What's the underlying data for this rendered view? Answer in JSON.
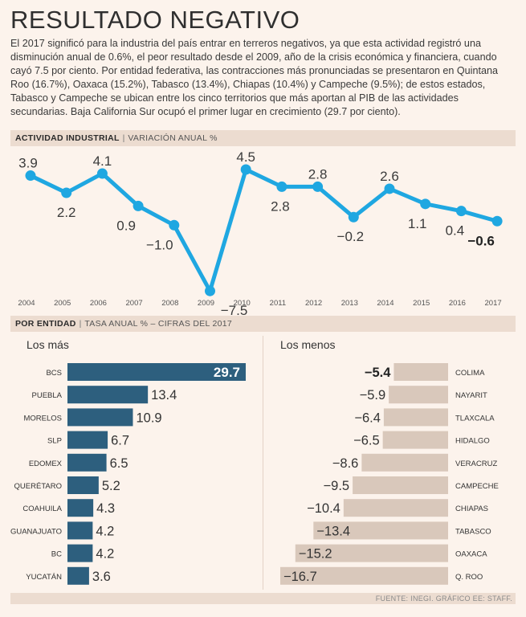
{
  "title": "RESULTADO NEGATIVO",
  "intro": "El 2017 significó para la industria del país entrar en terreros negativos, ya que esta actividad registró una disminución anual de 0.6%, el peor resultado desde el 2009, año de la crisis económica y financiera, cuando cayó 7.5 por ciento. Por entidad federativa, las contracciones más pronunciadas se presentaron en Quintana Roo (16.7%), Oaxaca (15.2%), Tabasco (13.4%), Chiapas (10.4%) y Campeche (9.5%); de estos estados, Tabasco y Campeche se ubican entre los cinco territorios que más aportan al PIB de las actividades secundarias. Baja California Sur ocupó el primer lugar en crecimiento (29.7 por ciento).",
  "section1": {
    "title": "ACTIVIDAD INDUSTRIAL",
    "subtitle": "VARIACIÓN ANUAL %"
  },
  "section2": {
    "title": "POR ENTIDAD",
    "subtitle": "TASA ANUAL % – CIFRAS DEL 2017"
  },
  "footer": "FUENTE: INEGI. GRÁFICO EE: STAFF.",
  "colors": {
    "accent": "#1fa7e1",
    "bar_top": "#2d5f7e",
    "bar_bottom": "#d9c8bb",
    "band": "#ecdcd0",
    "background": "#fcf3ec"
  },
  "chart_data": [
    {
      "type": "line",
      "title": "ACTIVIDAD INDUSTRIAL",
      "subtitle": "VARIACIÓN ANUAL %",
      "x": [
        "2004",
        "2005",
        "2006",
        "2007",
        "2008",
        "2009",
        "2010",
        "2011",
        "2012",
        "2013",
        "2014",
        "2015",
        "2016",
        "2017"
      ],
      "values": [
        3.9,
        2.2,
        4.1,
        0.9,
        -1.0,
        -7.5,
        4.5,
        2.8,
        2.8,
        -0.2,
        2.6,
        1.1,
        0.4,
        -0.6
      ],
      "labels": [
        "3.9",
        "2.2",
        "4.1",
        "0.9",
        "−1.0",
        "−7.5",
        "4.5",
        "2.8",
        "2.8",
        "−0.2",
        "2.6",
        "1.1",
        "0.4",
        "−0.6"
      ],
      "highlight_last": true,
      "ylim": [
        -8,
        5
      ]
    },
    {
      "type": "bar",
      "title": "Los más",
      "categories": [
        "BCS",
        "PUEBLA",
        "MORELOS",
        "SLP",
        "EDOMEX",
        "QUERÉTARO",
        "COAHUILA",
        "GUANAJUATO",
        "BC",
        "YUCATÁN"
      ],
      "values": [
        29.7,
        13.4,
        10.9,
        6.7,
        6.5,
        5.2,
        4.3,
        4.2,
        4.2,
        3.6
      ],
      "labels": [
        "29.7",
        "13.4",
        "10.9",
        "6.7",
        "6.5",
        "5.2",
        "4.3",
        "4.2",
        "4.2",
        "3.6"
      ]
    },
    {
      "type": "bar",
      "title": "Los menos",
      "categories": [
        "COLIMA",
        "NAYARIT",
        "TLAXCALA",
        "HIDALGO",
        "VERACRUZ",
        "CAMPECHE",
        "CHIAPAS",
        "TABASCO",
        "OAXACA",
        "Q. ROO"
      ],
      "values": [
        -5.4,
        -5.9,
        -6.4,
        -6.5,
        -8.6,
        -9.5,
        -10.4,
        -13.4,
        -15.2,
        -16.7
      ],
      "labels": [
        "−5.4",
        "−5.9",
        "−6.4",
        "−6.5",
        "−8.6",
        "−9.5",
        "−10.4",
        "−13.4",
        "−15.2",
        "−16.7"
      ]
    }
  ]
}
